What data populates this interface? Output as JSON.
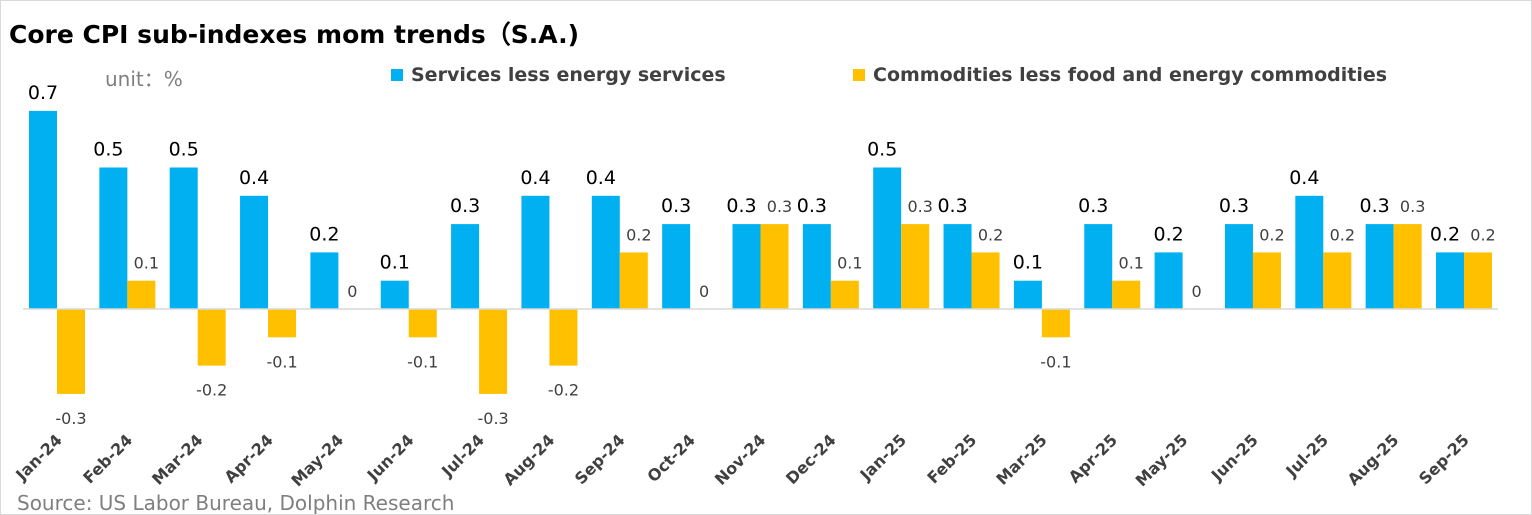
{
  "title": "Core CPI sub-indexes mom trends（S.A.)",
  "unit": "unit：%",
  "source": "Source: US Labor Bureau, Dolphin Research",
  "chart_data": {
    "type": "bar",
    "title": "Core CPI sub-indexes mom trends（S.A.)",
    "ylabel": "unit：%",
    "ylim": [
      -0.4,
      0.7
    ],
    "grid": false,
    "legend_position": "top",
    "categories": [
      "Jan-24",
      "Feb-24",
      "Mar-24",
      "Apr-24",
      "May-24",
      "Jun-24",
      "Jul-24",
      "Aug-24",
      "Sep-24",
      "Oct-24",
      "Nov-24",
      "Dec-24",
      "Jan-25",
      "Feb-25",
      "Mar-25",
      "Apr-25",
      "May-25",
      "Jun-25",
      "Jul-25",
      "Aug-25",
      "Sep-25"
    ],
    "series": [
      {
        "name": "Services less energy services",
        "color": "#00B0F0",
        "values": [
          0.7,
          0.5,
          0.5,
          0.4,
          0.2,
          0.1,
          0.3,
          0.4,
          0.4,
          0.3,
          0.3,
          0.3,
          0.5,
          0.3,
          0.1,
          0.3,
          0.2,
          0.3,
          0.4,
          0.3,
          0.2
        ]
      },
      {
        "name": "Commodities less food and energy commodities",
        "color": "#FFC000",
        "values": [
          -0.3,
          0.1,
          -0.2,
          -0.1,
          0,
          -0.1,
          -0.3,
          -0.2,
          0.2,
          0,
          0.3,
          0.1,
          0.3,
          0.2,
          -0.1,
          0.1,
          0,
          0.2,
          0.2,
          0.3,
          0.2
        ]
      }
    ]
  }
}
